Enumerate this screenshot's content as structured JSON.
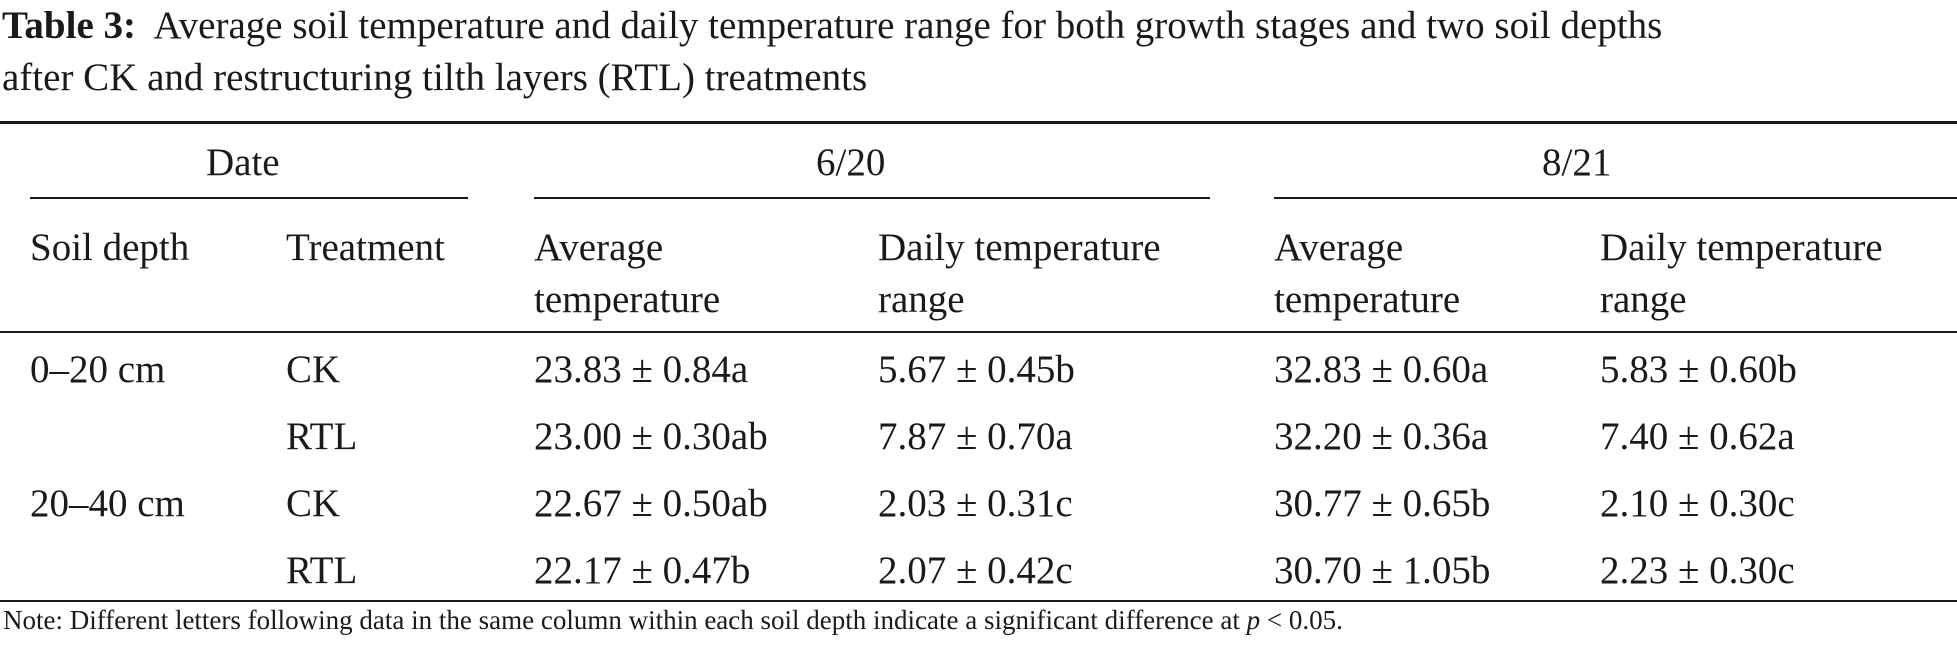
{
  "caption": {
    "label": "Table 3:",
    "text_line1": "Average soil temperature and daily temperature range for both growth stages and two soil depths",
    "text_line2": "after CK and restructuring tilth layers (RTL) treatments"
  },
  "header": {
    "date": "Date",
    "group1": "6/20",
    "group2": "8/21",
    "soil_depth": "Soil depth",
    "treatment": "Treatment",
    "avg_temp_l1": "Average",
    "avg_temp_l2": "temperature",
    "range_l1": "Daily temperature",
    "range_l2": "range"
  },
  "rows": [
    {
      "depth": "0–20 cm",
      "treatment": "CK",
      "avg1": "23.83 ± 0.84a",
      "range1": "5.67 ± 0.45b",
      "avg2": "32.83 ± 0.60a",
      "range2": "5.83 ± 0.60b"
    },
    {
      "depth": "",
      "treatment": "RTL",
      "avg1": "23.00 ± 0.30ab",
      "range1": "7.87 ± 0.70a",
      "avg2": "32.20 ± 0.36a",
      "range2": "7.40 ± 0.62a"
    },
    {
      "depth": "20–40 cm",
      "treatment": "CK",
      "avg1": "22.67 ± 0.50ab",
      "range1": "2.03 ± 0.31c",
      "avg2": "30.77 ± 0.65b",
      "range2": "2.10 ± 0.30c"
    },
    {
      "depth": "",
      "treatment": "RTL",
      "avg1": "22.17 ± 0.47b",
      "range1": "2.07 ± 0.42c",
      "avg2": "30.70 ± 1.05b",
      "range2": "2.23 ± 0.30c"
    }
  ],
  "note": {
    "prefix": "Note: Different letters following data in the same column within each soil depth indicate a significant difference at ",
    "p": "p",
    "suffix": " < 0.05."
  }
}
